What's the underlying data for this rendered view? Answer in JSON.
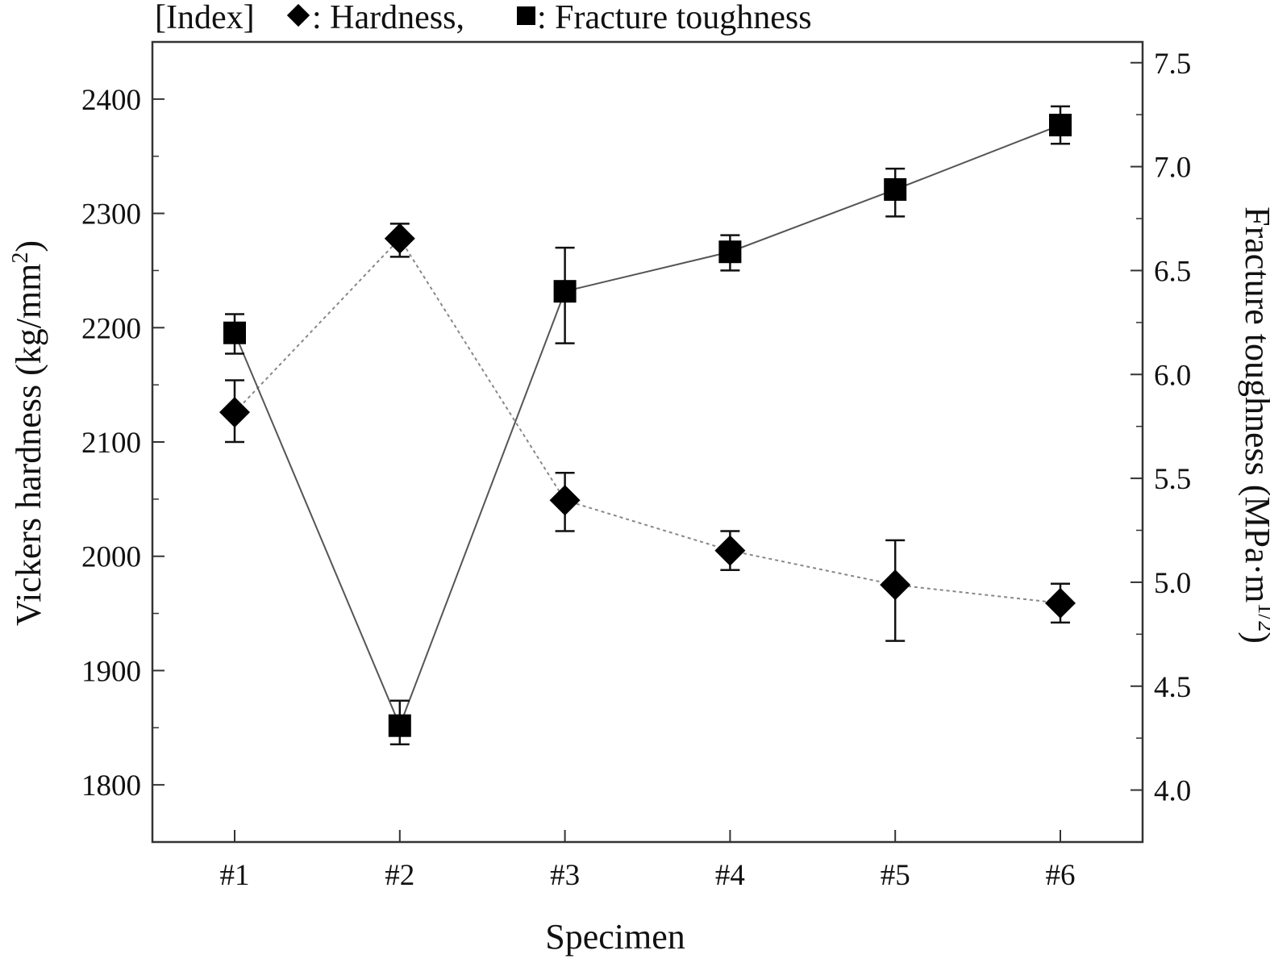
{
  "chart_data": {
    "type": "line",
    "legend": {
      "prefix": "[Index]",
      "items": [
        {
          "marker": "diamond",
          "label": ": Hardness,"
        },
        {
          "marker": "square",
          "label": ": Fracture toughness"
        }
      ],
      "placement": "top-left"
    },
    "categories": [
      "#1",
      "#2",
      "#3",
      "#4",
      "#5",
      "#6"
    ],
    "xlabel": "Specimen",
    "ylabel_left": {
      "base": "Vickers hardness (kg/mm",
      "sup": "2",
      "close": ")"
    },
    "ylabel_right": {
      "base": "Fracture toughness (MPa·m",
      "sup": "1/2",
      "close": ")"
    },
    "ylim_left": [
      1750,
      2450
    ],
    "ylim_right": [
      3.75,
      7.6
    ],
    "yticks_left": [
      "1800",
      "1900",
      "2000",
      "2100",
      "2200",
      "2300",
      "2400"
    ],
    "yticks_right": [
      "4.0",
      "4.5",
      "5.0",
      "5.5",
      "6.0",
      "6.5",
      "7.0",
      "7.5"
    ],
    "grid": false,
    "series": [
      {
        "name": "Hardness",
        "axis": "left",
        "marker": "diamond",
        "line": "dotted",
        "values": [
          2126,
          2278,
          2049,
          2005,
          1975,
          1959
        ],
        "err_low": [
          2100,
          2262,
          2022,
          1988,
          1926,
          1942
        ],
        "err_high": [
          2154,
          2291,
          2073,
          2022,
          2014,
          1976
        ]
      },
      {
        "name": "Fracture toughness",
        "axis": "right",
        "marker": "square",
        "line": "solid",
        "values": [
          6.2,
          4.31,
          6.4,
          6.59,
          6.89,
          7.2
        ],
        "err_low": [
          6.1,
          4.22,
          6.15,
          6.5,
          6.76,
          7.11
        ],
        "err_high": [
          6.29,
          4.43,
          6.61,
          6.67,
          6.99,
          7.29
        ]
      }
    ]
  }
}
